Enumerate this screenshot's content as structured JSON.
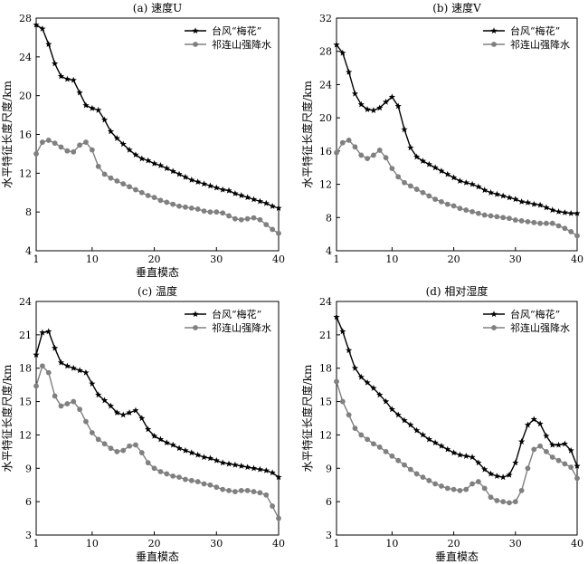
{
  "chart_data": [
    {
      "type": "line",
      "title": "(a) 速度U",
      "xlabel": "垂直模态",
      "ylabel": "水平特征长度尺度/km",
      "xlim": [
        1,
        40
      ],
      "ylim": [
        4,
        28
      ],
      "xticks": [
        1,
        10,
        20,
        30,
        40
      ],
      "yticks": [
        4,
        8,
        12,
        16,
        20,
        24,
        28
      ],
      "grid": false,
      "legend_position": "top-right",
      "x": [
        1,
        2,
        3,
        4,
        5,
        6,
        7,
        8,
        9,
        10,
        11,
        12,
        13,
        14,
        15,
        16,
        17,
        18,
        19,
        20,
        21,
        22,
        23,
        24,
        25,
        26,
        27,
        28,
        29,
        30,
        31,
        32,
        33,
        34,
        35,
        36,
        37,
        38,
        39,
        40
      ],
      "series": [
        {
          "name": "台风“梅花”",
          "color": "#000000",
          "marker": "star",
          "values": [
            27.3,
            26.9,
            25.3,
            23.3,
            22.0,
            21.7,
            21.6,
            20.3,
            19.0,
            18.7,
            18.5,
            17.5,
            16.3,
            15.6,
            15.0,
            14.4,
            13.9,
            13.5,
            13.3,
            13.0,
            12.8,
            12.5,
            12.2,
            11.9,
            11.6,
            11.3,
            11.1,
            10.9,
            10.7,
            10.5,
            10.3,
            10.2,
            9.9,
            9.7,
            9.5,
            9.3,
            9.1,
            8.9,
            8.6,
            8.4
          ]
        },
        {
          "name": "祁连山强降水",
          "color": "#808080",
          "marker": "circle",
          "values": [
            14.0,
            15.2,
            15.4,
            15.1,
            14.7,
            14.3,
            14.2,
            14.9,
            15.2,
            14.4,
            12.7,
            11.9,
            11.5,
            11.2,
            10.9,
            10.6,
            10.3,
            10.0,
            9.7,
            9.5,
            9.2,
            9.0,
            8.8,
            8.6,
            8.5,
            8.4,
            8.3,
            8.1,
            8.0,
            8.0,
            7.9,
            7.6,
            7.3,
            7.2,
            7.3,
            7.4,
            7.2,
            6.7,
            6.2,
            5.8
          ]
        }
      ]
    },
    {
      "type": "line",
      "title": "(b) 速度V",
      "xlabel": "",
      "ylabel": "水平特征长度尺度/km",
      "xlim": [
        1,
        40
      ],
      "ylim": [
        4,
        32
      ],
      "xticks": [
        1,
        10,
        20,
        30,
        40
      ],
      "yticks": [
        4,
        8,
        12,
        16,
        20,
        24,
        28,
        32
      ],
      "grid": false,
      "legend_position": "top-right",
      "x": [
        1,
        2,
        3,
        4,
        5,
        6,
        7,
        8,
        9,
        10,
        11,
        12,
        13,
        14,
        15,
        16,
        17,
        18,
        19,
        20,
        21,
        22,
        23,
        24,
        25,
        26,
        27,
        28,
        29,
        30,
        31,
        32,
        33,
        34,
        35,
        36,
        37,
        38,
        39,
        40
      ],
      "series": [
        {
          "name": "台风“梅花”",
          "color": "#000000",
          "marker": "star",
          "values": [
            28.8,
            27.8,
            25.5,
            22.9,
            21.6,
            21.0,
            20.9,
            21.2,
            21.9,
            22.5,
            21.4,
            18.6,
            16.4,
            15.3,
            14.8,
            14.4,
            14.0,
            13.6,
            13.2,
            12.8,
            12.4,
            12.2,
            12.0,
            11.7,
            11.3,
            11.0,
            10.8,
            10.6,
            10.4,
            10.2,
            9.9,
            9.8,
            9.6,
            9.5,
            9.2,
            8.9,
            8.7,
            8.6,
            8.5,
            8.5
          ]
        },
        {
          "name": "祁连山强降水",
          "color": "#808080",
          "marker": "circle",
          "values": [
            15.8,
            17.0,
            17.3,
            16.5,
            15.5,
            15.1,
            15.5,
            16.1,
            15.2,
            13.9,
            12.9,
            12.2,
            11.8,
            11.4,
            11.0,
            10.6,
            10.2,
            9.9,
            9.6,
            9.4,
            9.1,
            8.9,
            8.7,
            8.5,
            8.3,
            8.2,
            8.1,
            8.0,
            7.9,
            7.7,
            7.6,
            7.5,
            7.4,
            7.3,
            7.3,
            7.3,
            7.0,
            6.7,
            6.3,
            5.8
          ]
        }
      ]
    },
    {
      "type": "line",
      "title": "(c) 温度",
      "xlabel": "垂直模态",
      "ylabel": "水平特征长度尺度/km",
      "xlim": [
        1,
        40
      ],
      "ylim": [
        3,
        24
      ],
      "xticks": [
        1,
        10,
        20,
        30,
        40
      ],
      "yticks": [
        3,
        6,
        9,
        12,
        15,
        18,
        21,
        24
      ],
      "grid": false,
      "legend_position": "top-right",
      "x": [
        1,
        2,
        3,
        4,
        5,
        6,
        7,
        8,
        9,
        10,
        11,
        12,
        13,
        14,
        15,
        16,
        17,
        18,
        19,
        20,
        21,
        22,
        23,
        24,
        25,
        26,
        27,
        28,
        29,
        30,
        31,
        32,
        33,
        34,
        35,
        36,
        37,
        38,
        39,
        40
      ],
      "series": [
        {
          "name": "台风“梅花”",
          "color": "#000000",
          "marker": "star",
          "values": [
            19.2,
            21.2,
            21.3,
            19.8,
            18.5,
            18.2,
            18.0,
            17.8,
            17.6,
            16.6,
            15.6,
            15.1,
            14.6,
            14.0,
            13.8,
            14.0,
            14.2,
            13.5,
            12.5,
            11.9,
            11.6,
            11.3,
            11.1,
            10.8,
            10.6,
            10.4,
            10.2,
            10.0,
            9.9,
            9.7,
            9.5,
            9.4,
            9.3,
            9.2,
            9.1,
            9.0,
            8.9,
            8.8,
            8.6,
            8.2
          ]
        },
        {
          "name": "祁连山强降水",
          "color": "#808080",
          "marker": "circle",
          "values": [
            16.4,
            18.2,
            17.6,
            15.5,
            14.6,
            14.8,
            15.0,
            14.3,
            13.2,
            12.2,
            11.6,
            11.2,
            10.8,
            10.5,
            10.6,
            11.0,
            11.1,
            10.4,
            9.5,
            9.0,
            8.7,
            8.5,
            8.3,
            8.2,
            8.0,
            7.9,
            7.8,
            7.6,
            7.5,
            7.3,
            7.1,
            7.0,
            6.9,
            7.0,
            7.0,
            6.9,
            6.8,
            6.6,
            5.6,
            4.5
          ]
        }
      ]
    },
    {
      "type": "line",
      "title": "(d) 相对湿度",
      "xlabel": "垂直模态",
      "ylabel": "水平特征长度尺度/km",
      "xlim": [
        1,
        40
      ],
      "ylim": [
        3,
        24
      ],
      "xticks": [
        1,
        10,
        20,
        30,
        40
      ],
      "yticks": [
        3,
        6,
        9,
        12,
        15,
        18,
        21,
        24
      ],
      "grid": false,
      "legend_position": "top-right",
      "x": [
        1,
        2,
        3,
        4,
        5,
        6,
        7,
        8,
        9,
        10,
        11,
        12,
        13,
        14,
        15,
        16,
        17,
        18,
        19,
        20,
        21,
        22,
        23,
        24,
        25,
        26,
        27,
        28,
        29,
        30,
        31,
        32,
        33,
        34,
        35,
        36,
        37,
        38,
        39,
        40
      ],
      "series": [
        {
          "name": "台风“梅花”",
          "color": "#000000",
          "marker": "star",
          "values": [
            22.6,
            21.3,
            19.6,
            18.0,
            17.2,
            16.7,
            16.2,
            15.6,
            15.0,
            14.3,
            13.8,
            13.3,
            12.9,
            12.4,
            12.0,
            11.6,
            11.3,
            11.0,
            10.7,
            10.4,
            10.2,
            10.1,
            10.0,
            9.5,
            8.9,
            8.5,
            8.3,
            8.2,
            8.4,
            9.5,
            11.4,
            12.9,
            13.4,
            13.0,
            11.9,
            11.1,
            11.1,
            11.2,
            10.6,
            9.2
          ]
        },
        {
          "name": "祁连山强降水",
          "color": "#808080",
          "marker": "circle",
          "values": [
            16.8,
            15.0,
            13.8,
            12.6,
            12.0,
            11.6,
            11.2,
            10.9,
            10.5,
            10.1,
            9.7,
            9.3,
            8.9,
            8.5,
            8.2,
            7.9,
            7.6,
            7.4,
            7.2,
            7.1,
            7.0,
            7.1,
            7.6,
            7.8,
            7.2,
            6.4,
            6.1,
            6.0,
            5.9,
            6.0,
            7.0,
            9.0,
            10.7,
            11.0,
            10.5,
            10.0,
            9.7,
            9.4,
            9.1,
            8.1
          ]
        }
      ]
    }
  ]
}
